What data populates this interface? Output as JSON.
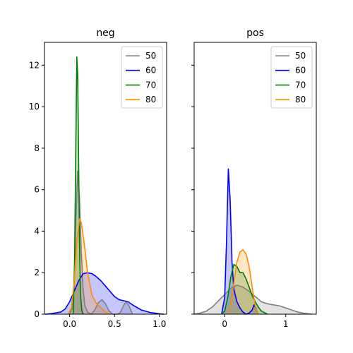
{
  "chart_data": [
    {
      "type": "area",
      "title": "neg",
      "xlabel": "",
      "ylabel": "",
      "xlim": [
        -0.28,
        1.08
      ],
      "ylim": [
        0,
        13.1
      ],
      "xticks": [
        0.0,
        0.5,
        1.0
      ],
      "xtick_labels": [
        "0.0",
        "0.5",
        "1.0"
      ],
      "yticks": [
        0,
        2,
        4,
        6,
        8,
        10,
        12
      ],
      "ytick_labels": [
        "0",
        "2",
        "4",
        "6",
        "8",
        "10",
        "12"
      ],
      "legend_position": "top-right",
      "series": [
        {
          "name": "50",
          "color": "#808080",
          "x": [
            0.0,
            0.03,
            0.05,
            0.07,
            0.09,
            0.11,
            0.13,
            0.15,
            0.17,
            0.2,
            0.24,
            0.28,
            0.32,
            0.36,
            0.4,
            0.44,
            0.48,
            0.52,
            0.56,
            0.6,
            0.63,
            0.66,
            0.7
          ],
          "y": [
            0.0,
            0.3,
            1.5,
            4.5,
            6.9,
            5.6,
            3.0,
            1.2,
            0.4,
            0.1,
            0.0,
            0.2,
            0.55,
            0.7,
            0.5,
            0.15,
            0.0,
            0.0,
            0.05,
            0.4,
            0.6,
            0.4,
            0.0
          ]
        },
        {
          "name": "60",
          "color": "#0000ff",
          "x": [
            -0.27,
            -0.2,
            -0.1,
            -0.05,
            0.0,
            0.05,
            0.1,
            0.15,
            0.2,
            0.25,
            0.3,
            0.35,
            0.4,
            0.45,
            0.5,
            0.55,
            0.6,
            0.65,
            0.7,
            0.8,
            0.9,
            1.0,
            1.05
          ],
          "y": [
            0.0,
            0.03,
            0.1,
            0.25,
            0.6,
            1.1,
            1.6,
            1.95,
            2.0,
            1.95,
            1.8,
            1.6,
            1.35,
            1.1,
            0.85,
            0.7,
            0.65,
            0.6,
            0.45,
            0.2,
            0.08,
            0.02,
            0.0
          ]
        },
        {
          "name": "70",
          "color": "#008000",
          "x": [
            0.04,
            0.055,
            0.07,
            0.08,
            0.09,
            0.1,
            0.11,
            0.12,
            0.135,
            0.15
          ],
          "y": [
            0.0,
            2.5,
            8.5,
            12.4,
            11.5,
            7.5,
            3.5,
            1.0,
            0.2,
            0.0
          ]
        },
        {
          "name": "80",
          "color": "#ff8c00",
          "x": [
            -0.02,
            0.02,
            0.05,
            0.08,
            0.11,
            0.13,
            0.16,
            0.2,
            0.25,
            0.3,
            0.35,
            0.4,
            0.45
          ],
          "y": [
            0.0,
            0.3,
            1.5,
            3.5,
            4.6,
            4.4,
            3.5,
            2.0,
            0.9,
            0.5,
            0.3,
            0.1,
            0.0
          ]
        }
      ]
    },
    {
      "type": "area",
      "title": "pos",
      "xlabel": "",
      "ylabel": "",
      "xlim": [
        -0.5,
        1.5
      ],
      "ylim": [
        0,
        13.1
      ],
      "xticks": [
        0,
        1
      ],
      "xtick_labels": [
        "0",
        "1"
      ],
      "yticks": [
        0,
        2,
        4,
        6,
        8,
        10,
        12
      ],
      "ytick_labels": [],
      "legend_position": "top-right",
      "series": [
        {
          "name": "50",
          "color": "#808080",
          "x": [
            -0.5,
            -0.4,
            -0.3,
            -0.2,
            -0.1,
            0.0,
            0.1,
            0.2,
            0.3,
            0.4,
            0.5,
            0.6,
            0.7,
            0.8,
            0.9,
            1.0,
            1.1,
            1.2,
            1.3,
            1.43
          ],
          "y": [
            0.0,
            0.05,
            0.15,
            0.35,
            0.65,
            0.95,
            1.25,
            1.4,
            1.3,
            1.1,
            0.85,
            0.6,
            0.5,
            0.45,
            0.4,
            0.3,
            0.2,
            0.1,
            0.04,
            0.0
          ]
        },
        {
          "name": "60",
          "color": "#0000ff",
          "x": [
            -0.05,
            0.0,
            0.03,
            0.06,
            0.09,
            0.12,
            0.15,
            0.2,
            0.25,
            0.3,
            0.35,
            0.4,
            0.45,
            0.48,
            0.51,
            0.55
          ],
          "y": [
            0.0,
            0.8,
            3.5,
            7.0,
            5.5,
            2.5,
            1.2,
            0.6,
            0.3,
            0.1,
            0.0,
            0.05,
            0.2,
            0.45,
            0.3,
            0.0
          ]
        },
        {
          "name": "70",
          "color": "#008000",
          "x": [
            -0.05,
            0.0,
            0.05,
            0.1,
            0.15,
            0.2,
            0.25,
            0.3,
            0.35,
            0.4,
            0.45,
            0.5,
            0.55,
            0.6,
            0.7
          ],
          "y": [
            0.0,
            0.15,
            0.8,
            1.8,
            2.4,
            2.3,
            2.0,
            2.0,
            1.7,
            1.3,
            0.9,
            0.6,
            0.35,
            0.15,
            0.0
          ]
        },
        {
          "name": "80",
          "color": "#ff8c00",
          "x": [
            0.05,
            0.1,
            0.15,
            0.2,
            0.25,
            0.3,
            0.35,
            0.4,
            0.45,
            0.5,
            0.55
          ],
          "y": [
            0.0,
            0.5,
            1.5,
            2.5,
            3.0,
            3.1,
            2.9,
            2.3,
            1.3,
            0.4,
            0.0
          ]
        }
      ]
    }
  ]
}
